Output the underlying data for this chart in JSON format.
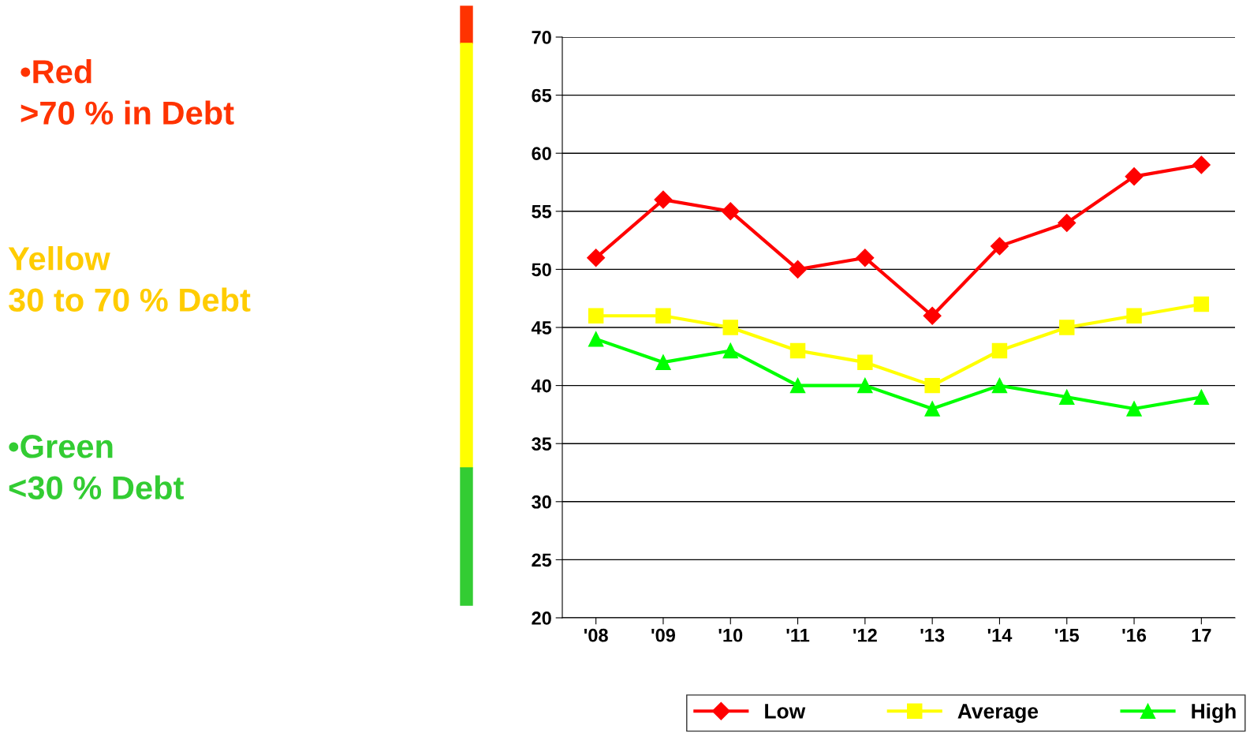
{
  "chart_data": {
    "type": "line",
    "categories": [
      "'08",
      "'09",
      "'10",
      "'11",
      "'12",
      "'13",
      "'14",
      "'15",
      "'16",
      "17"
    ],
    "series": [
      {
        "name": "Low",
        "color": "#ff0000",
        "marker": "diamond",
        "values": [
          51,
          56,
          55,
          50,
          51,
          46,
          52,
          54,
          58,
          59
        ]
      },
      {
        "name": "Average",
        "color": "#ffff00",
        "marker": "square",
        "values": [
          46,
          46,
          45,
          43,
          42,
          40,
          43,
          45,
          46,
          47
        ]
      },
      {
        "name": "High",
        "color": "#00ff00",
        "marker": "triangle",
        "values": [
          44,
          42,
          43,
          40,
          40,
          38,
          40,
          39,
          38,
          39
        ]
      }
    ],
    "ylim": [
      20,
      70
    ],
    "yticks": [
      20,
      25,
      30,
      35,
      40,
      45,
      50,
      55,
      60,
      65,
      70
    ],
    "grid": "y",
    "legend": "bottom",
    "line_style": "solid",
    "annotations": [
      "•Red\n>70 % in Debt",
      "Yellow\n30 to 70 % Debt",
      "•Green\n<30 % Debt"
    ]
  }
}
